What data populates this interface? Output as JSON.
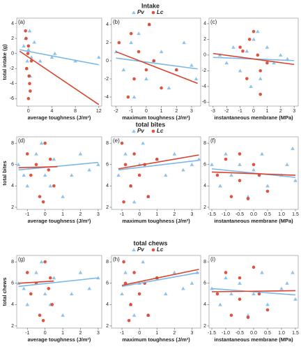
{
  "chart_data": [
    {
      "type": "scatter",
      "title": "Intake",
      "label": "(a)",
      "xlabel": "average toughness (J/m²)",
      "ylabel": "total intake (g)",
      "xlim": [
        -2,
        12.5
      ],
      "ylim": [
        -7,
        4.7
      ],
      "xticks": [
        0,
        4,
        8,
        12
      ],
      "yticks": [
        -6,
        -4,
        -2,
        0,
        2,
        4
      ],
      "series": [
        {
          "name": "Pv",
          "color": "#7ab8e8",
          "marker": "triangle",
          "x": [
            -0.5,
            -0.2,
            0,
            0.3,
            -0.8,
            0.5,
            1,
            2,
            4,
            4.5,
            8,
            12,
            0.2,
            -0.3
          ],
          "y": [
            2,
            -1,
            0.5,
            -3,
            1,
            -0.5,
            1.5,
            -1,
            -0.5,
            0,
            -1,
            -0.5,
            3,
            -2
          ],
          "fit_x": [
            -1.5,
            12
          ],
          "fit_y": [
            0.5,
            -1.5
          ]
        },
        {
          "name": "Lc",
          "color": "#d9432c",
          "marker": "circle",
          "x": [
            -0.5,
            -0.3,
            0,
            0.2,
            -0.1,
            0.5,
            -0.4,
            0.1,
            0.3,
            0
          ],
          "y": [
            3,
            -2,
            1,
            -4,
            0,
            -1,
            2,
            -3,
            -5,
            -6
          ],
          "fit_x": [
            -1.5,
            12
          ],
          "fit_y": [
            0.3,
            -6.8
          ]
        }
      ]
    },
    {
      "type": "scatter",
      "label": "(b)",
      "xlabel": "maximum toughness (J/m²)",
      "xlim": [
        -2.3,
        3.6
      ],
      "ylim": [
        -5,
        4.7
      ],
      "xticks": [
        -2,
        -1,
        0,
        1,
        2,
        3
      ],
      "yticks": [
        -4,
        -2,
        0,
        2,
        4
      ],
      "series": [
        {
          "name": "Pv",
          "color": "#7ab8e8",
          "marker": "triangle",
          "x": [
            -2,
            -1.5,
            -1,
            -0.5,
            0,
            0.5,
            1,
            1.5,
            2,
            2.5,
            3,
            3.3,
            -0.8,
            0.2
          ],
          "y": [
            1,
            -1,
            2,
            3,
            -2,
            0,
            1,
            -3,
            -1,
            2,
            -0.5,
            -2,
            -4,
            4
          ],
          "fit_x": [
            -2,
            3.4
          ],
          "fit_y": [
            0.3,
            -0.9
          ]
        },
        {
          "name": "Lc",
          "color": "#d9432c",
          "marker": "circle",
          "x": [
            -1.8,
            -1,
            -0.8,
            -0.5,
            0,
            0.2,
            0.5,
            1,
            2,
            -1.2
          ],
          "y": [
            2,
            3,
            -2,
            1,
            -1,
            4,
            0,
            -3,
            -1,
            -4
          ],
          "fit_x": [
            -2,
            3.4
          ],
          "fit_y": [
            1.0,
            -2.5
          ]
        }
      ]
    },
    {
      "type": "scatter",
      "label": "(c)",
      "xlabel": "instantaneous membrane (MPa)",
      "xlim": [
        -3.3,
        3.3
      ],
      "ylim": [
        -6.5,
        4.7
      ],
      "xticks": [
        -3,
        -2,
        -1,
        0,
        1,
        2,
        3
      ],
      "yticks": [
        -6,
        -4,
        -2,
        0,
        2,
        4
      ],
      "series": [
        {
          "name": "Pv",
          "color": "#7ab8e8",
          "marker": "triangle",
          "x": [
            -2.5,
            -2,
            -1.5,
            -1,
            -0.5,
            0,
            0.5,
            1,
            1.5,
            2,
            2.5,
            0.3,
            -0.2
          ],
          "y": [
            0,
            -1,
            1,
            -2,
            0.5,
            2,
            -3,
            1,
            -1,
            0,
            -0.5,
            3,
            -4
          ],
          "fit_x": [
            -3,
            3
          ],
          "fit_y": [
            -0.3,
            -0.7
          ]
        },
        {
          "name": "Lc",
          "color": "#d9432c",
          "marker": "circle",
          "x": [
            -1,
            -0.5,
            0,
            0.5,
            0.3,
            -0.3,
            0.5,
            -0.8,
            1
          ],
          "y": [
            1,
            -3,
            3,
            -2,
            0,
            2,
            -5,
            0.5,
            -1
          ],
          "fit_x": [
            -3,
            3
          ],
          "fit_y": [
            0.2,
            -1.2
          ]
        }
      ]
    },
    {
      "type": "scatter",
      "title": "total bites",
      "label": "(d)",
      "xlabel": "average toughness (J/m²)",
      "ylabel": "total bites",
      "xlim": [
        -1.6,
        3.2
      ],
      "ylim": [
        1.8,
        8.6
      ],
      "xticks": [
        -1,
        0,
        1,
        2,
        3
      ],
      "yticks": [
        2,
        4,
        6,
        8
      ],
      "series": [
        {
          "name": "Pv",
          "color": "#7ab8e8",
          "marker": "triangle",
          "x": [
            -1.5,
            -1,
            -0.5,
            0,
            0.5,
            1,
            1.5,
            2,
            2.5,
            3,
            -0.2,
            0.3,
            -1.2
          ],
          "y": [
            6,
            4,
            7,
            5,
            6.5,
            3,
            5,
            7,
            5.5,
            6,
            8,
            4,
            5
          ],
          "fit_x": [
            -1.5,
            3
          ],
          "fit_y": [
            5.5,
            6.2
          ]
        },
        {
          "name": "Lc",
          "color": "#d9432c",
          "marker": "circle",
          "x": [
            -1,
            -0.8,
            -0.5,
            -0.3,
            0,
            0.2,
            0.5,
            -0.1,
            0.3
          ],
          "y": [
            7,
            5,
            6,
            3,
            8,
            5.5,
            4,
            2.5,
            6.5
          ],
          "fit_x": [
            -1.5,
            0.7
          ],
          "fit_y": [
            5.7,
            5.8
          ]
        }
      ]
    },
    {
      "type": "scatter",
      "label": "(e)",
      "xlabel": "maximum toughness (J/m²)",
      "xlim": [
        -1.6,
        3.5
      ],
      "ylim": [
        1.8,
        8.6
      ],
      "xticks": [
        -1,
        0,
        1,
        2,
        3
      ],
      "yticks": [
        2,
        4,
        6,
        8
      ],
      "series": [
        {
          "name": "Pv",
          "color": "#7ab8e8",
          "marker": "triangle",
          "x": [
            -1.2,
            -0.8,
            -0.5,
            0,
            0.5,
            1,
            1.5,
            2,
            2.5,
            3,
            3.4,
            0.2,
            -0.3
          ],
          "y": [
            5,
            7,
            4,
            6,
            3,
            6.5,
            5,
            7,
            5.5,
            6,
            6.5,
            8,
            2.5
          ],
          "fit_x": [
            -1.2,
            3.4
          ],
          "fit_y": [
            5.5,
            6.4
          ]
        },
        {
          "name": "Lc",
          "color": "#d9432c",
          "marker": "circle",
          "x": [
            -1,
            -0.8,
            -0.5,
            -0.3,
            0,
            0.3,
            0.5,
            1,
            -0.9
          ],
          "y": [
            8,
            6,
            4,
            7,
            5,
            6,
            3,
            6.5,
            2.5
          ],
          "fit_x": [
            -1.2,
            3.4
          ],
          "fit_y": [
            5.6,
            6.9
          ]
        }
      ]
    },
    {
      "type": "scatter",
      "label": "(f)",
      "xlabel": "instantaneous membrane (MPa)",
      "xlim": [
        -1.6,
        1.6
      ],
      "ylim": [
        1.8,
        8.6
      ],
      "xticks": [
        -1.5,
        {
          "value": -1,
          "label": "-1.0"
        },
        -0.5,
        {
          "value": 0,
          "label": "0.0"
        },
        0.5,
        {
          "value": 1,
          "label": "1.0"
        },
        1.5
      ],
      "yticks": [
        2,
        4,
        6,
        8
      ],
      "series": [
        {
          "name": "Pv",
          "color": "#7ab8e8",
          "marker": "triangle",
          "x": [
            -1.5,
            -1.2,
            -1,
            -0.8,
            -0.5,
            -0.2,
            0,
            0.3,
            0.5,
            1,
            1.2,
            1.5,
            1.4
          ],
          "y": [
            6,
            4,
            7,
            5,
            6,
            3,
            5.5,
            7,
            4,
            5,
            6,
            4.5,
            7.5
          ],
          "fit_x": [
            -1.5,
            1.5
          ],
          "fit_y": [
            5.6,
            4.8
          ]
        },
        {
          "name": "Lc",
          "color": "#d9432c",
          "marker": "circle",
          "x": [
            -1.3,
            -1,
            -0.8,
            -0.5,
            -0.5,
            0,
            0.2,
            0.5,
            -0.2
          ],
          "y": [
            5,
            6.5,
            3,
            7,
            4.5,
            6,
            5,
            3.5,
            2.8
          ],
          "fit_x": [
            -1.5,
            1.5
          ],
          "fit_y": [
            5.3,
            5.0
          ]
        }
      ]
    },
    {
      "type": "scatter",
      "title": "total chews",
      "label": "(g)",
      "xlabel": "average toughness (J/m²)",
      "ylabel": "total chews",
      "xlim": [
        -1.6,
        3.2
      ],
      "ylim": [
        1.8,
        8.6
      ],
      "xticks": [
        -1,
        0,
        1,
        2,
        3
      ],
      "yticks": [
        2,
        4,
        6,
        8
      ],
      "series": [
        {
          "name": "Pv",
          "color": "#7ab8e8",
          "marker": "triangle",
          "x": [
            -1.5,
            -1,
            -0.5,
            0,
            0.5,
            1,
            1.5,
            2,
            2.5,
            3,
            -0.2,
            0.3,
            -1.2
          ],
          "y": [
            6,
            4,
            7,
            5,
            6.5,
            3,
            5,
            7,
            5.5,
            6.5,
            8,
            4,
            5.5
          ],
          "fit_x": [
            -1.5,
            3
          ],
          "fit_y": [
            5.7,
            6.5
          ]
        },
        {
          "name": "Lc",
          "color": "#d9432c",
          "marker": "circle",
          "x": [
            -1,
            -0.8,
            -0.5,
            -0.3,
            0,
            0.2,
            0.4,
            -0.1,
            0.3
          ],
          "y": [
            7,
            5,
            6,
            3,
            8,
            5.5,
            4,
            2.5,
            6.5
          ],
          "fit_x": [
            -1.5,
            0.5
          ],
          "fit_y": [
            6.0,
            6.2
          ]
        }
      ]
    },
    {
      "type": "scatter",
      "label": "(h)",
      "xlabel": "maximum toughness (J/m²)",
      "xlim": [
        -1.6,
        3.5
      ],
      "ylim": [
        1.8,
        8.6
      ],
      "xticks": [
        -1,
        0,
        1,
        2,
        3
      ],
      "yticks": [
        2,
        4,
        6,
        8
      ],
      "series": [
        {
          "name": "Pv",
          "color": "#7ab8e8",
          "marker": "triangle",
          "x": [
            -1,
            -0.8,
            -0.5,
            0,
            0.5,
            1,
            1.5,
            2,
            2.5,
            3,
            3.3,
            0.2,
            -0.3
          ],
          "y": [
            5,
            7,
            4,
            6,
            3,
            6.5,
            5,
            7,
            5.5,
            6,
            7,
            8,
            3
          ],
          "fit_x": [
            -1,
            3.4
          ],
          "fit_y": [
            5.7,
            7.0
          ]
        },
        {
          "name": "Lc",
          "color": "#d9432c",
          "marker": "circle",
          "x": [
            -0.9,
            -0.8,
            -0.5,
            -0.3,
            0,
            0.3,
            0.5,
            1,
            -0.6
          ],
          "y": [
            8,
            6,
            4,
            7,
            5,
            6,
            3,
            6.5,
            2.5
          ],
          "fit_x": [
            -1,
            3.4
          ],
          "fit_y": [
            5.8,
            7.3
          ]
        }
      ]
    },
    {
      "type": "scatter",
      "label": "(i)",
      "xlabel": "instantaneous membrane (MPa)",
      "xlim": [
        -1.6,
        1.6
      ],
      "ylim": [
        1.8,
        8.6
      ],
      "xticks": [
        -1.5,
        {
          "value": -1,
          "label": "-1.0"
        },
        -0.5,
        {
          "value": 0,
          "label": "0.0"
        },
        0.5,
        {
          "value": 1,
          "label": "1.0"
        },
        1.5
      ],
      "yticks": [
        2,
        4,
        6,
        8
      ],
      "series": [
        {
          "name": "Pv",
          "color": "#7ab8e8",
          "marker": "triangle",
          "x": [
            -1.5,
            -1.2,
            -1,
            -0.8,
            -0.5,
            -0.2,
            0,
            0.3,
            0.5,
            1,
            1.2,
            1.5,
            1.4
          ],
          "y": [
            5.5,
            4,
            6.5,
            5,
            6,
            3,
            5,
            7,
            4,
            5.5,
            6,
            4.5,
            7
          ],
          "fit_x": [
            -1.5,
            1.5
          ],
          "fit_y": [
            5.5,
            4.9
          ]
        },
        {
          "name": "Lc",
          "color": "#d9432c",
          "marker": "circle",
          "x": [
            -1.3,
            -1,
            -0.8,
            -0.5,
            -0.5,
            0,
            0.2,
            0.5,
            -0.2
          ],
          "y": [
            5,
            7,
            3,
            6.5,
            4.5,
            7.5,
            5,
            3.5,
            2.8
          ],
          "fit_x": [
            -1.5,
            1.5
          ],
          "fit_y": [
            5.2,
            5.3
          ]
        }
      ]
    }
  ]
}
